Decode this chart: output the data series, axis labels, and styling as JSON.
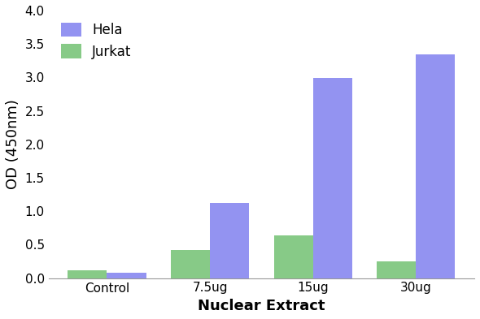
{
  "categories": [
    "Control",
    "7.5ug",
    "15ug",
    "30ug"
  ],
  "hela_values": [
    0.08,
    1.12,
    2.99,
    3.35
  ],
  "jurkat_values": [
    0.12,
    0.42,
    0.64,
    0.25
  ],
  "hela_color": "#7b7bef",
  "jurkat_color": "#6dbf6d",
  "xlabel": "Nuclear Extract",
  "ylabel": "OD (450nm)",
  "ylim": [
    0,
    4.0
  ],
  "yticks": [
    0.0,
    0.5,
    1.0,
    1.5,
    2.0,
    2.5,
    3.0,
    3.5,
    4.0
  ],
  "legend_labels": [
    "Hela",
    "Jurkat"
  ],
  "bar_width": 0.38,
  "background_color": "#ffffff",
  "xlabel_fontsize": 13,
  "ylabel_fontsize": 13,
  "tick_fontsize": 11,
  "legend_fontsize": 12
}
